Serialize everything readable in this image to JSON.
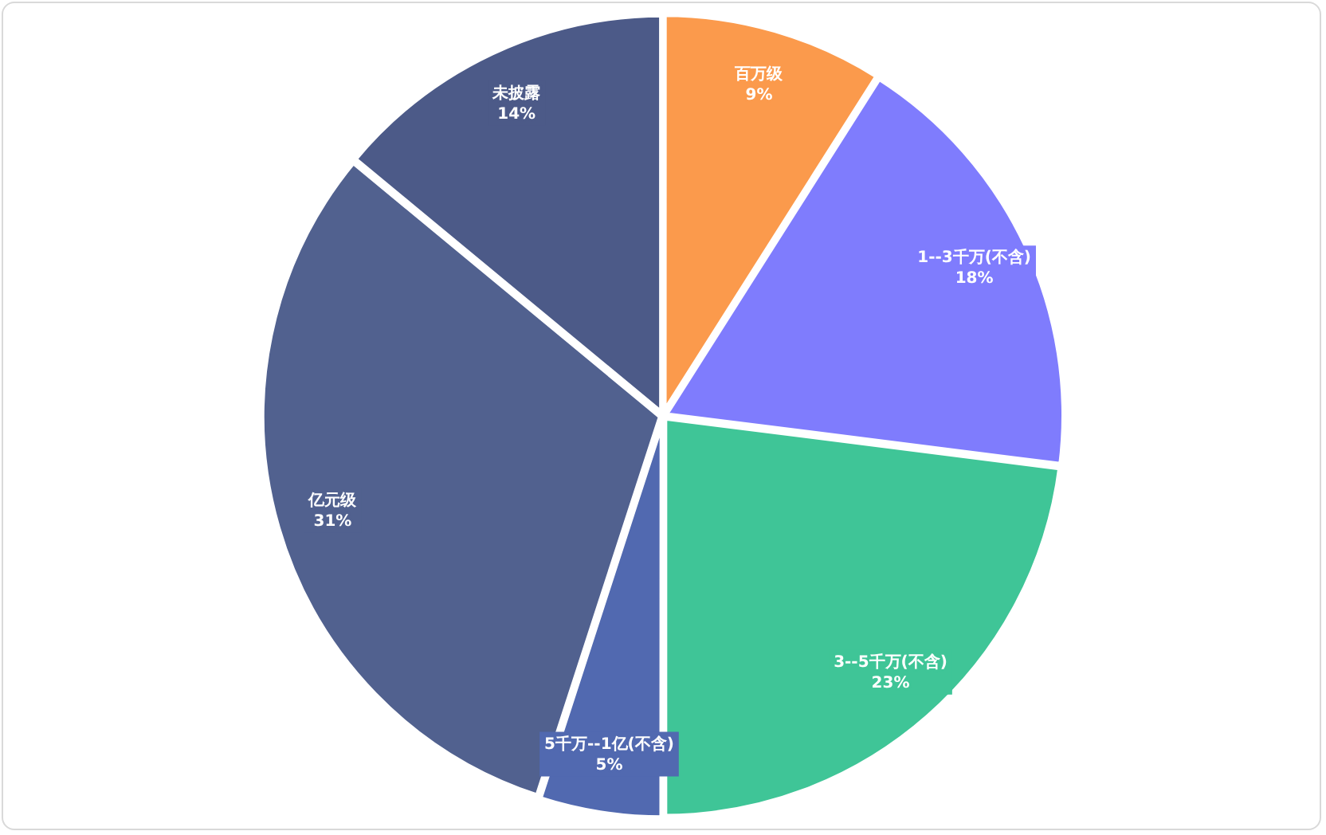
{
  "chart_data": {
    "type": "pie",
    "categories": [
      "百万级",
      "1--3千万(不含)",
      "3--5千万(不含)",
      "5千万--1亿(不含)",
      "亿元级",
      "未披露"
    ],
    "values": [
      9,
      18,
      23,
      5,
      31,
      14
    ],
    "colors": [
      "#fb9a4c",
      "#7f7cfd",
      "#3fc597",
      "#5169b0",
      "#51618f",
      "#4c5a88"
    ],
    "value_labels": [
      "9%",
      "18%",
      "23%",
      "5%",
      "31%",
      "14%"
    ],
    "legend": false
  }
}
